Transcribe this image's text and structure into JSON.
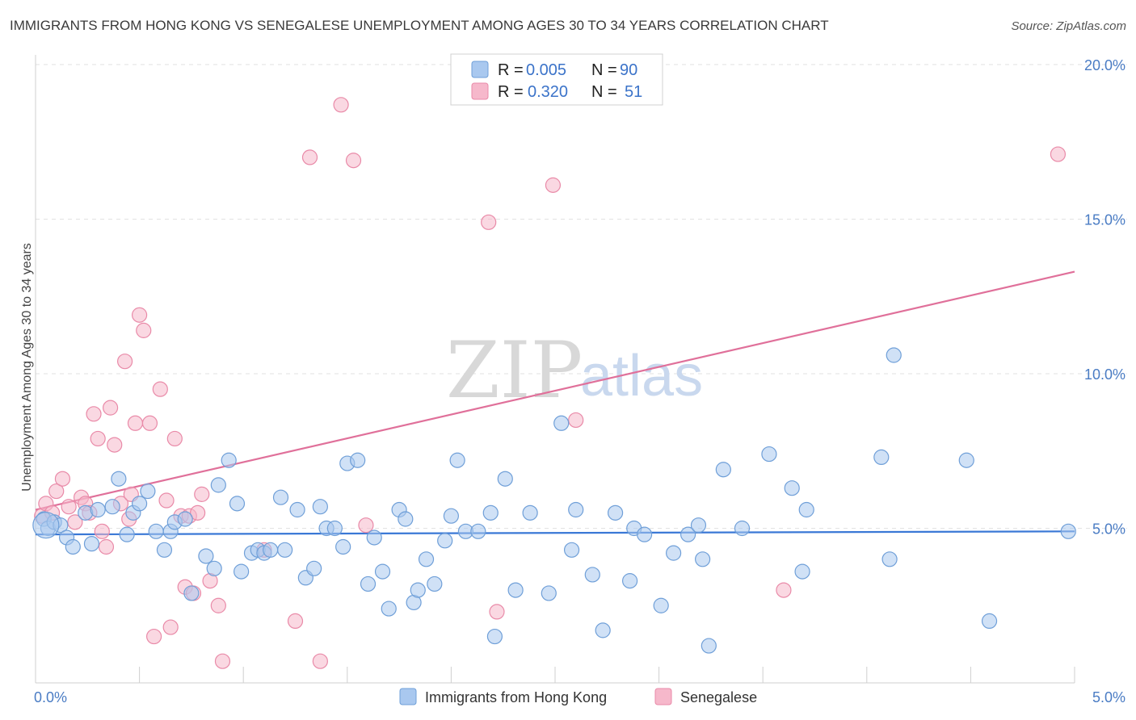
{
  "title": "IMMIGRANTS FROM HONG KONG VS SENEGALESE UNEMPLOYMENT AMONG AGES 30 TO 34 YEARS CORRELATION CHART",
  "source": "Source: ZipAtlas.com",
  "watermark": {
    "zip": "ZIP",
    "atlas": "atlas"
  },
  "colors": {
    "blue_fill": "#a9c8ef",
    "blue_stroke": "#6f9fd8",
    "blue_line": "#3a78d6",
    "pink_fill": "#f6b8cb",
    "pink_stroke": "#e98aa8",
    "pink_line": "#e0709a",
    "grid": "#e2e2e2",
    "tick_text": "#4a7cc4"
  },
  "legend": {
    "rows": [
      {
        "r_label": "R =",
        "r_value": "0.005",
        "n_label": "N =",
        "n_value": "90"
      },
      {
        "r_label": "R =",
        "r_value": "0.320",
        "n_label": "N =",
        "n_value": "51"
      }
    ]
  },
  "chart_data": {
    "type": "scatter",
    "xlabel": "",
    "ylabel": "Unemployment Among Ages 30 to 34 years",
    "xlim": [
      0,
      5
    ],
    "ylim": [
      0,
      20
    ],
    "x_tick_labels": [
      {
        "value": 0,
        "label": "0.0%"
      },
      {
        "value": 5,
        "label": "5.0%"
      }
    ],
    "y_tick_labels": [
      {
        "value": 5,
        "label": "5.0%"
      },
      {
        "value": 10,
        "label": "10.0%"
      },
      {
        "value": 15,
        "label": "15.0%"
      },
      {
        "value": 20,
        "label": "20.0%"
      }
    ],
    "legend_position": "top-center",
    "series": [
      {
        "name": "Immigrants from Hong Kong",
        "color": "blue",
        "trend": {
          "x": [
            0,
            5
          ],
          "y": [
            4.8,
            4.9
          ]
        },
        "points": [
          [
            0.04,
            5.3
          ],
          [
            0.06,
            5.0
          ],
          [
            0.09,
            5.2
          ],
          [
            0.12,
            5.1
          ],
          [
            0.15,
            4.7
          ],
          [
            0.18,
            4.4
          ],
          [
            0.24,
            5.5
          ],
          [
            0.27,
            4.5
          ],
          [
            0.3,
            5.6
          ],
          [
            0.37,
            5.7
          ],
          [
            0.4,
            6.6
          ],
          [
            0.44,
            4.8
          ],
          [
            0.47,
            5.5
          ],
          [
            0.5,
            5.8
          ],
          [
            0.54,
            6.2
          ],
          [
            0.58,
            4.9
          ],
          [
            0.62,
            4.3
          ],
          [
            0.65,
            4.9
          ],
          [
            0.67,
            5.2
          ],
          [
            0.72,
            5.3
          ],
          [
            0.75,
            2.9
          ],
          [
            0.82,
            4.1
          ],
          [
            0.86,
            3.7
          ],
          [
            0.88,
            6.4
          ],
          [
            0.93,
            7.2
          ],
          [
            0.97,
            5.8
          ],
          [
            0.99,
            3.6
          ],
          [
            1.04,
            4.2
          ],
          [
            1.07,
            4.3
          ],
          [
            1.1,
            4.2
          ],
          [
            1.13,
            4.3
          ],
          [
            1.18,
            6.0
          ],
          [
            1.2,
            4.3
          ],
          [
            1.26,
            5.6
          ],
          [
            1.3,
            3.4
          ],
          [
            1.34,
            3.7
          ],
          [
            1.37,
            5.7
          ],
          [
            1.4,
            5.0
          ],
          [
            1.44,
            5.0
          ],
          [
            1.48,
            4.4
          ],
          [
            1.5,
            7.1
          ],
          [
            1.55,
            7.2
          ],
          [
            1.6,
            3.2
          ],
          [
            1.63,
            4.7
          ],
          [
            1.67,
            3.6
          ],
          [
            1.7,
            2.4
          ],
          [
            1.75,
            5.6
          ],
          [
            1.78,
            5.3
          ],
          [
            1.82,
            2.6
          ],
          [
            1.84,
            3.0
          ],
          [
            1.88,
            4.0
          ],
          [
            1.92,
            3.2
          ],
          [
            1.97,
            4.6
          ],
          [
            2.0,
            5.4
          ],
          [
            2.03,
            7.2
          ],
          [
            2.07,
            4.9
          ],
          [
            2.13,
            4.9
          ],
          [
            2.19,
            5.5
          ],
          [
            2.21,
            1.5
          ],
          [
            2.26,
            6.6
          ],
          [
            2.31,
            3.0
          ],
          [
            2.38,
            5.5
          ],
          [
            2.47,
            2.9
          ],
          [
            2.53,
            8.4
          ],
          [
            2.58,
            4.3
          ],
          [
            2.6,
            5.6
          ],
          [
            2.68,
            3.5
          ],
          [
            2.73,
            1.7
          ],
          [
            2.79,
            5.5
          ],
          [
            2.86,
            3.3
          ],
          [
            2.88,
            5.0
          ],
          [
            2.93,
            4.8
          ],
          [
            3.01,
            2.5
          ],
          [
            3.07,
            4.2
          ],
          [
            3.14,
            4.8
          ],
          [
            3.19,
            5.1
          ],
          [
            3.21,
            4.0
          ],
          [
            3.24,
            1.2
          ],
          [
            3.31,
            6.9
          ],
          [
            3.4,
            5.0
          ],
          [
            3.53,
            7.4
          ],
          [
            3.64,
            6.3
          ],
          [
            3.69,
            3.6
          ],
          [
            3.71,
            5.6
          ],
          [
            4.07,
            7.3
          ],
          [
            4.11,
            4.0
          ],
          [
            4.13,
            10.6
          ],
          [
            4.48,
            7.2
          ],
          [
            4.59,
            2.0
          ],
          [
            4.97,
            4.9
          ]
        ]
      },
      {
        "name": "Senegalese",
        "color": "pink",
        "trend": {
          "x": [
            0,
            5
          ],
          "y": [
            5.6,
            13.3
          ]
        },
        "points": [
          [
            0.03,
            5.4
          ],
          [
            0.05,
            5.8
          ],
          [
            0.08,
            5.5
          ],
          [
            0.1,
            6.2
          ],
          [
            0.13,
            6.6
          ],
          [
            0.16,
            5.7
          ],
          [
            0.19,
            5.2
          ],
          [
            0.22,
            6.0
          ],
          [
            0.24,
            5.8
          ],
          [
            0.26,
            5.5
          ],
          [
            0.28,
            8.7
          ],
          [
            0.3,
            7.9
          ],
          [
            0.32,
            4.9
          ],
          [
            0.34,
            4.4
          ],
          [
            0.36,
            8.9
          ],
          [
            0.38,
            7.7
          ],
          [
            0.41,
            5.8
          ],
          [
            0.43,
            10.4
          ],
          [
            0.45,
            5.3
          ],
          [
            0.46,
            6.1
          ],
          [
            0.48,
            8.4
          ],
          [
            0.5,
            11.9
          ],
          [
            0.52,
            11.4
          ],
          [
            0.55,
            8.4
          ],
          [
            0.57,
            1.5
          ],
          [
            0.6,
            9.5
          ],
          [
            0.63,
            5.9
          ],
          [
            0.65,
            1.8
          ],
          [
            0.67,
            7.9
          ],
          [
            0.7,
            5.4
          ],
          [
            0.72,
            3.1
          ],
          [
            0.74,
            5.4
          ],
          [
            0.76,
            2.9
          ],
          [
            0.78,
            5.5
          ],
          [
            0.8,
            6.1
          ],
          [
            0.84,
            3.3
          ],
          [
            0.88,
            2.5
          ],
          [
            0.9,
            0.7
          ],
          [
            1.1,
            4.3
          ],
          [
            1.25,
            2.0
          ],
          [
            1.32,
            17.0
          ],
          [
            1.37,
            0.7
          ],
          [
            1.47,
            18.7
          ],
          [
            1.53,
            16.9
          ],
          [
            1.59,
            5.1
          ],
          [
            2.18,
            14.9
          ],
          [
            2.22,
            2.3
          ],
          [
            2.49,
            16.1
          ],
          [
            2.6,
            8.5
          ],
          [
            3.6,
            3.0
          ],
          [
            4.92,
            17.1
          ]
        ]
      }
    ]
  }
}
